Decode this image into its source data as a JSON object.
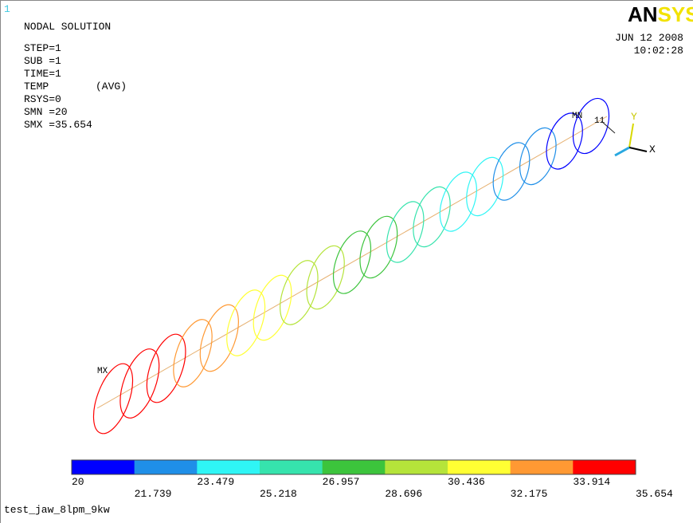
{
  "window_number": "1",
  "info": {
    "title": "NODAL SOLUTION",
    "lines": [
      "STEP=1",
      "SUB =1",
      "TIME=1"
    ],
    "quantity": "TEMP",
    "averaging": "(AVG)",
    "lines2": [
      "RSYS=0",
      "SMN =20",
      "SMX =35.654"
    ]
  },
  "logo": "ANSYS",
  "date": "JUN 12 2008",
  "time": "10:02:28",
  "markers": {
    "min": "MN",
    "max": "MX",
    "node": "11"
  },
  "axes": {
    "y": "Y",
    "x": "X"
  },
  "legend": {
    "labels": [
      "20",
      "21.739",
      "23.479",
      "25.218",
      "26.957",
      "28.696",
      "30.436",
      "32.175",
      "33.914",
      "35.654"
    ],
    "colors": [
      "#0000ff",
      "#1f8fe8",
      "#2ff5f5",
      "#36e3ad",
      "#3cc43c",
      "#b5e43a",
      "#ffff33",
      "#ff9933",
      "#ff0000"
    ]
  },
  "footer": "test_jaw_8lpm_9kw"
}
